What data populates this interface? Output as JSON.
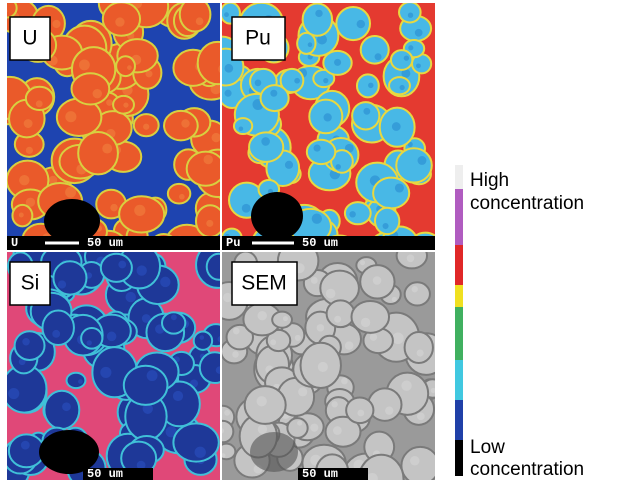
{
  "panels": [
    {
      "label": "U",
      "element_tag": "U",
      "scale_bar": "50 um"
    },
    {
      "label": "Pu",
      "element_tag": "Pu",
      "scale_bar": "50 um"
    },
    {
      "label": "Si",
      "scale_bar": "50 um"
    },
    {
      "label": "SEM",
      "scale_bar": "50 um"
    }
  ],
  "legend": {
    "high": {
      "line1": "High",
      "line2": "concentration"
    },
    "low": {
      "line1": "Low",
      "line2": "concentration"
    }
  }
}
